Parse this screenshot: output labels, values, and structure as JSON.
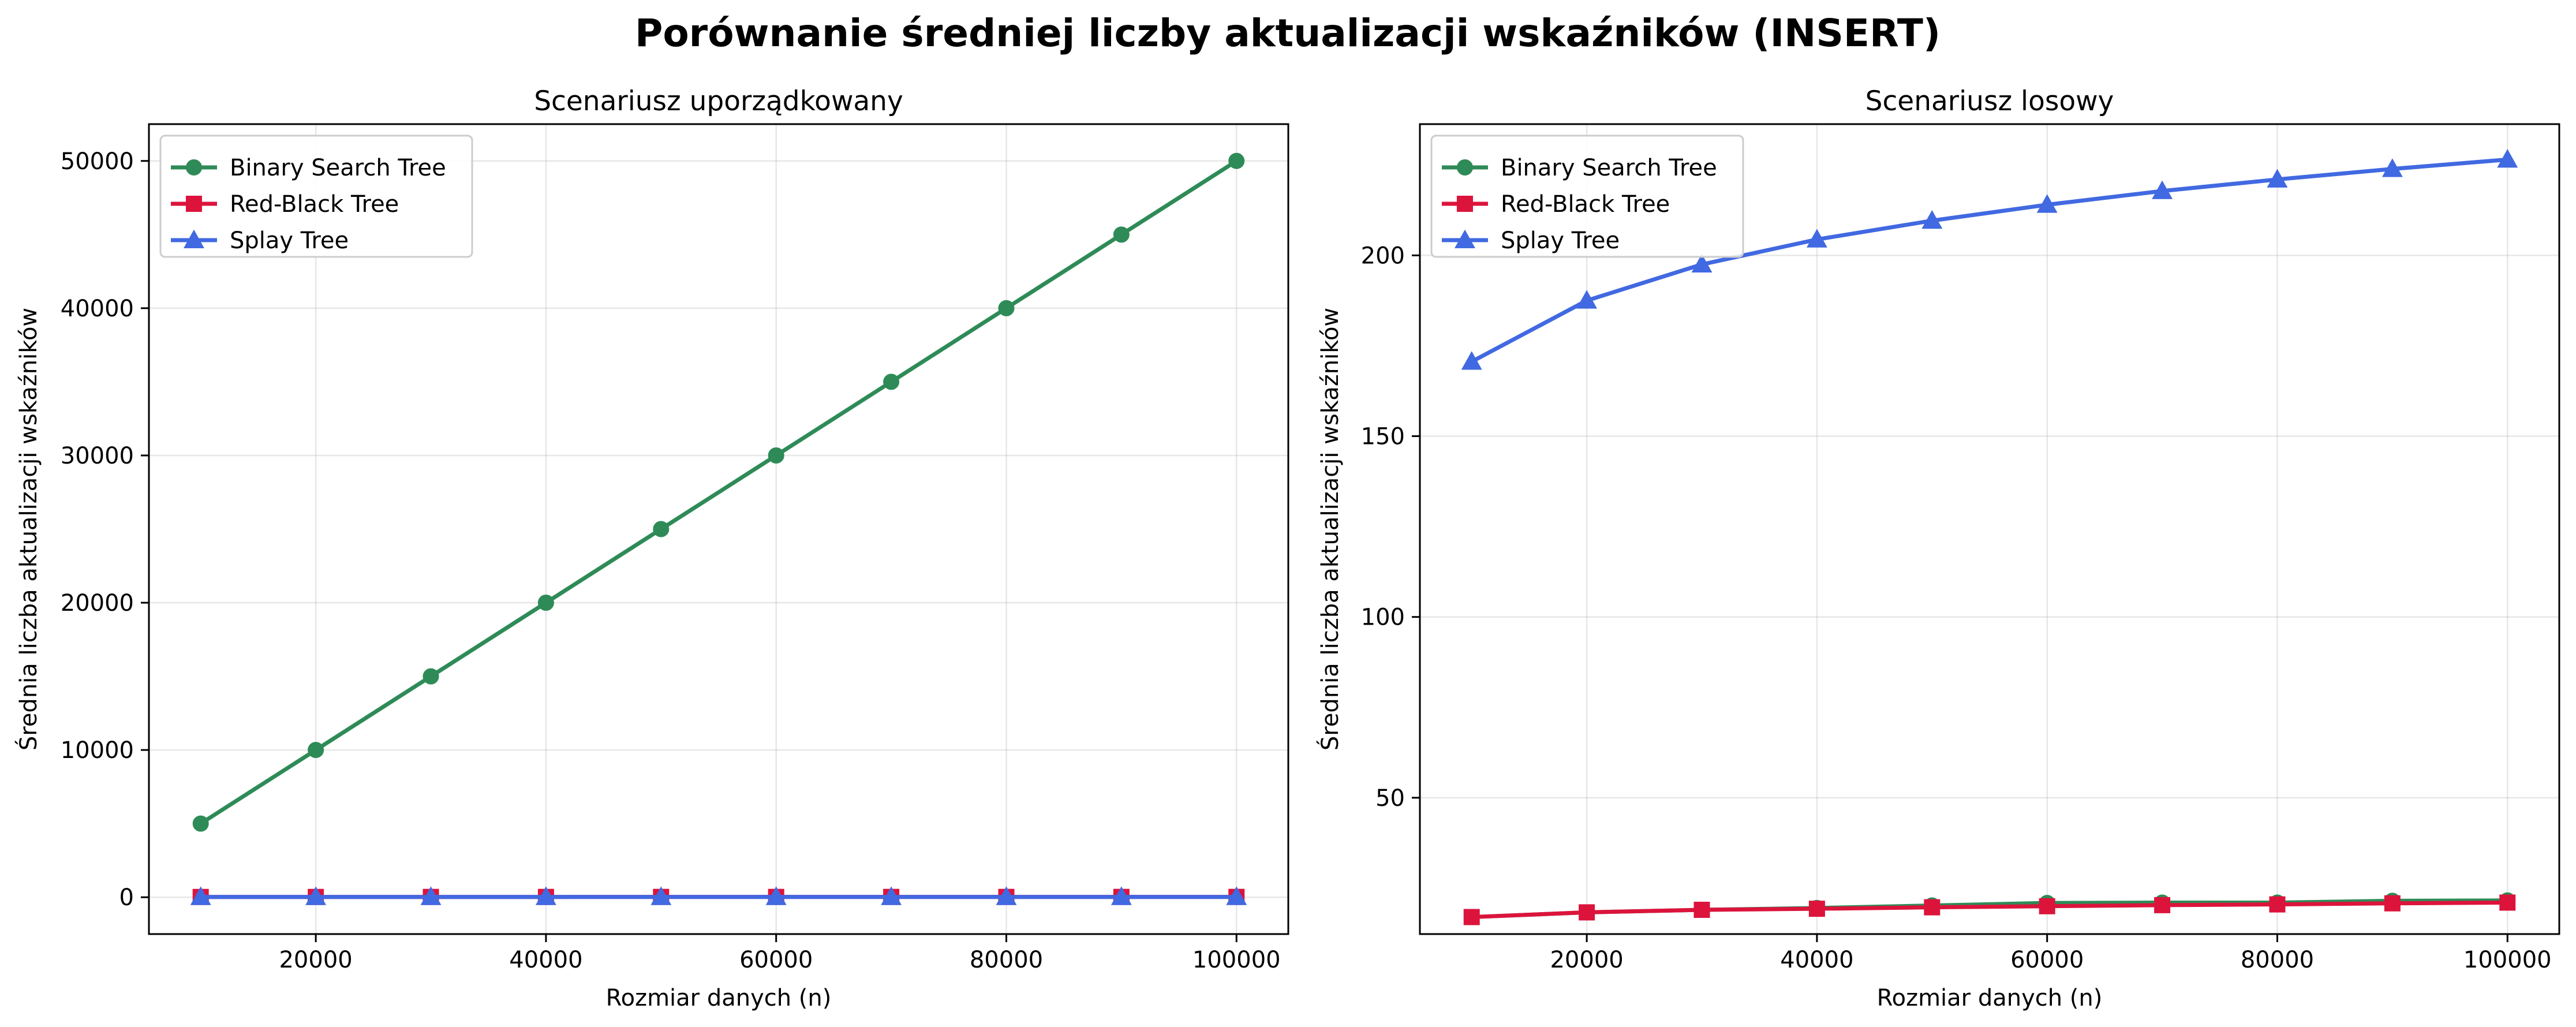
{
  "suptitle": "Porównanie średniej liczby aktualizacji wskaźników (INSERT)",
  "colors": {
    "Binary Search Tree": "#2e8b57",
    "Red-Black Tree": "#dc143c",
    "Splay Tree": "#4169e1"
  },
  "markers": {
    "Binary Search Tree": "circle",
    "Red-Black Tree": "square",
    "Splay Tree": "triangle"
  },
  "chart_data": [
    {
      "type": "line",
      "title": "Scenariusz uporządkowany",
      "xlabel": "Rozmiar danych (n)",
      "ylabel": "Średnia liczba aktualizacji wskaźników",
      "xlim": [
        5500,
        104500
      ],
      "ylim": [
        -2500,
        52500
      ],
      "xticks": [
        20000,
        40000,
        60000,
        80000,
        100000
      ],
      "yticks": [
        0,
        10000,
        20000,
        30000,
        40000,
        50000
      ],
      "grid": true,
      "legend": "top-left",
      "x": [
        10000,
        20000,
        30000,
        40000,
        50000,
        60000,
        70000,
        80000,
        90000,
        100000
      ],
      "series": [
        {
          "name": "Binary Search Tree",
          "values": [
            5000,
            10000,
            15000,
            20000,
            25000,
            30000,
            35000,
            40000,
            45000,
            50000
          ]
        },
        {
          "name": "Red-Black Tree",
          "values": [
            19,
            20,
            21,
            21,
            22,
            22,
            22,
            22,
            23,
            23
          ]
        },
        {
          "name": "Splay Tree",
          "values": [
            20,
            20,
            20,
            20,
            20,
            20,
            20,
            20,
            20,
            20
          ]
        }
      ]
    },
    {
      "type": "line",
      "title": "Scenariusz losowy",
      "xlabel": "Rozmiar danych (n)",
      "ylabel": "Średnia liczba aktualizacji wskaźników",
      "xlim": [
        5500,
        104500
      ],
      "ylim": [
        12.3,
        236.3
      ],
      "xticks": [
        20000,
        40000,
        60000,
        80000,
        100000
      ],
      "yticks": [
        50,
        100,
        150,
        200
      ],
      "grid": true,
      "legend": "top-left",
      "x": [
        10000,
        20000,
        30000,
        40000,
        50000,
        60000,
        70000,
        80000,
        90000,
        100000
      ],
      "series": [
        {
          "name": "Binary Search Tree",
          "values": [
            17.0,
            18.3,
            19.0,
            19.5,
            20.2,
            20.9,
            21.0,
            21.0,
            21.5,
            21.6
          ]
        },
        {
          "name": "Red-Black Tree",
          "values": [
            17.0,
            18.3,
            19.0,
            19.3,
            19.7,
            20.0,
            20.3,
            20.5,
            20.8,
            21.0
          ]
        },
        {
          "name": "Splay Tree",
          "values": [
            170.6,
            187.5,
            197.5,
            204.4,
            209.6,
            214.0,
            217.8,
            221.0,
            223.9,
            226.5
          ]
        }
      ]
    }
  ]
}
